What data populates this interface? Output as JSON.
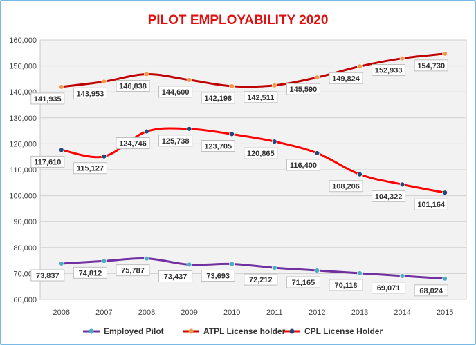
{
  "chart_data": {
    "type": "line",
    "title": "PILOT EMPLOYABILITY 2020",
    "xlabel": "",
    "ylabel": "",
    "x": [
      "2006",
      "2007",
      "2008",
      "2009",
      "2010",
      "2011",
      "2012",
      "2013",
      "2014",
      "2015"
    ],
    "ylim": [
      60000,
      160000
    ],
    "yticks": [
      "60,000",
      "70,000",
      "80,000",
      "90,000",
      "100,000",
      "110,000",
      "120,000",
      "130,000",
      "140,000",
      "150,000",
      "160,000"
    ],
    "ytick_values": [
      60000,
      70000,
      80000,
      90000,
      100000,
      110000,
      120000,
      130000,
      140000,
      150000,
      160000
    ],
    "grid": true,
    "legend_position": "bottom",
    "series": [
      {
        "name": "Employed Pilot",
        "line_color": "#7030a0",
        "marker_color": "#4bacc6",
        "values": [
          73837,
          74812,
          75787,
          73437,
          73693,
          72212,
          71165,
          70118,
          69071,
          68024
        ],
        "labels": [
          "73,837",
          "74,812",
          "75,787",
          "73,437",
          "73,693",
          "72,212",
          "71,165",
          "70,118",
          "69,071",
          "68,024"
        ]
      },
      {
        "name": "ATPL License holder",
        "line_color": "#c00000",
        "marker_color": "#f79646",
        "values": [
          141935,
          143953,
          146838,
          144600,
          142198,
          142511,
          145590,
          149824,
          152933,
          154730
        ],
        "labels": [
          "141,935",
          "143,953",
          "146,838",
          "144,600",
          "142,198",
          "142,511",
          "145,590",
          "149,824",
          "152,933",
          "154,730"
        ]
      },
      {
        "name": "CPL License Holder",
        "line_color": "#ff0000",
        "marker_color": "#1f497d",
        "values": [
          117610,
          115127,
          124746,
          125738,
          123705,
          120865,
          116400,
          108206,
          104322,
          101164
        ],
        "labels": [
          "117,610",
          "115,127",
          "124,746",
          "125,738",
          "123,705",
          "120,865",
          "116,400",
          "108,206",
          "104,322",
          "101,164"
        ]
      }
    ]
  }
}
